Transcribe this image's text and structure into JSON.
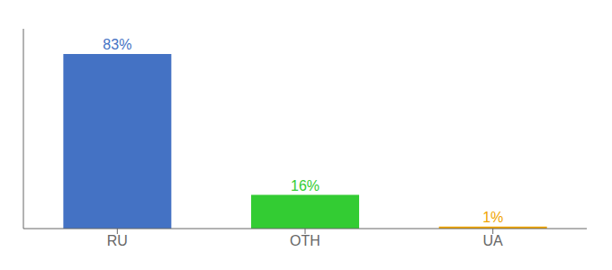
{
  "chart_data": {
    "type": "bar",
    "categories": [
      "RU",
      "OTH",
      "UA"
    ],
    "values": [
      83,
      16,
      1
    ],
    "value_labels": [
      "83%",
      "16%",
      "1%"
    ],
    "colors": [
      "#4472c4",
      "#33cc33",
      "#f0a500"
    ],
    "data_labels": true,
    "ylim": [
      0,
      95
    ],
    "tick_labels": "x",
    "grid": false
  }
}
